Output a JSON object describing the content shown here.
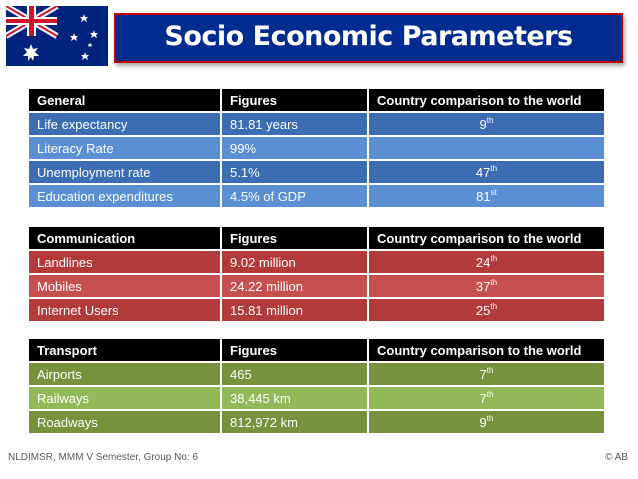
{
  "title": "Socio Economic Parameters",
  "tables": [
    {
      "headers": [
        "General",
        "Figures",
        "Country comparison to the world"
      ],
      "rows": [
        {
          "label": "Life expectancy",
          "figure": "81.81 years",
          "rank": "9",
          "suffix": "th"
        },
        {
          "label": "Literacy Rate",
          "figure": "99%",
          "rank": "",
          "suffix": ""
        },
        {
          "label": "Unemployment rate",
          "figure": "5.1%",
          "rank": "47",
          "suffix": "th"
        },
        {
          "label": "Education expenditures",
          "figure": "4.5% of GDP",
          "rank": "81",
          "suffix": "st"
        }
      ]
    },
    {
      "headers": [
        "Communication",
        "Figures",
        "Country comparison to the world"
      ],
      "rows": [
        {
          "label": "Landlines",
          "figure": "9.02 million",
          "rank": "24",
          "suffix": "th"
        },
        {
          "label": "Mobiles",
          "figure": "24.22 million",
          "rank": "37",
          "suffix": "th"
        },
        {
          "label": "Internet Users",
          "figure": "15.81 million",
          "rank": "25",
          "suffix": "th"
        }
      ]
    },
    {
      "headers": [
        "Transport",
        "Figures",
        "Country comparison to the world"
      ],
      "rows": [
        {
          "label": "Airports",
          "figure": "465",
          "rank": "7",
          "suffix": "th"
        },
        {
          "label": "Railways",
          "figure": "38,445 km",
          "rank": "7",
          "suffix": "th"
        },
        {
          "label": "Roadways",
          "figure": "812,972 km",
          "rank": "9",
          "suffix": "th"
        }
      ]
    }
  ],
  "colors": {
    "title_bg": "#002b8f",
    "title_border": "#c00000",
    "general_rows": [
      "#3c6db3",
      "#5b8fd3"
    ],
    "communication_rows": [
      "#b23a3a",
      "#c65050"
    ],
    "transport_rows": [
      "#76923c",
      "#92b858"
    ]
  },
  "flag": "australia-flag",
  "footer": {
    "left": "NLDIMSR, MMM V Semester, Group No: 6",
    "right": "© AB"
  }
}
